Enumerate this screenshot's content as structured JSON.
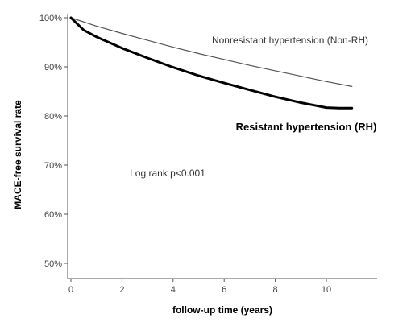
{
  "chart_data": {
    "type": "line",
    "title": "",
    "xlabel": "follow-up time (years)",
    "ylabel": "MACE-free survival rate",
    "xlim": [
      0,
      11.5
    ],
    "ylim": [
      47,
      100
    ],
    "x_ticks": [
      0,
      2,
      4,
      6,
      8,
      10
    ],
    "x_tick_labels": [
      "0",
      "2",
      "4",
      "6",
      "8",
      "10"
    ],
    "y_ticks": [
      50,
      60,
      70,
      80,
      90,
      100
    ],
    "y_tick_labels": [
      "50%",
      "60%",
      "70%",
      "80%",
      "90%",
      "100%"
    ],
    "grid": false,
    "series": [
      {
        "name": "Nonresistant hypertension (Non-RH)",
        "color": "#555555",
        "x": [
          0,
          1,
          2,
          3,
          4,
          5,
          6,
          7,
          8,
          9,
          10,
          11
        ],
        "y": [
          100,
          98.3,
          96.8,
          95.4,
          94.0,
          92.7,
          91.5,
          90.3,
          89.2,
          88.1,
          87.0,
          86.0
        ]
      },
      {
        "name": "Resistant hypertension (RH)",
        "color": "#000000",
        "x": [
          0,
          0.5,
          1,
          2,
          3,
          4,
          5,
          6,
          7,
          8,
          9,
          10,
          10.5,
          11
        ],
        "y": [
          100,
          97.5,
          96.1,
          93.8,
          91.8,
          89.9,
          88.2,
          86.7,
          85.3,
          83.9,
          82.7,
          81.7,
          81.6,
          81.6
        ]
      }
    ],
    "annotations": [
      "Log rank p<0.001"
    ]
  }
}
